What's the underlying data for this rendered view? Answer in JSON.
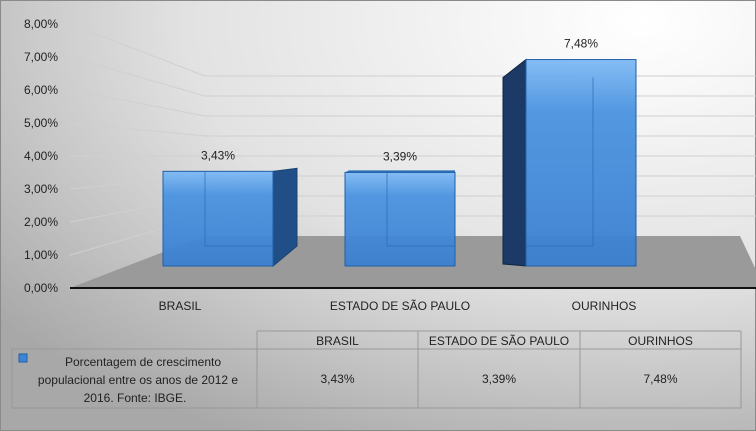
{
  "chart_data": {
    "type": "bar",
    "style": "3d-column",
    "categories": [
      "BRASIL",
      "ESTADO DE SÃO PAULO",
      "OURINHOS"
    ],
    "series": [
      {
        "name": "Porcentagem de crescimento populacional entre os anos de 2012 e 2016. Fonte: IBGE.",
        "values": [
          3.43,
          3.39,
          7.48
        ],
        "color": "#3d85d6"
      }
    ],
    "data_labels": [
      "3,43%",
      "3,39%",
      "7,48%"
    ],
    "yticks": [
      "0,00%",
      "1,00%",
      "2,00%",
      "3,00%",
      "4,00%",
      "5,00%",
      "6,00%",
      "7,00%",
      "8,00%"
    ],
    "ylim": [
      0,
      8
    ],
    "grid": true,
    "legend": "data-table",
    "table": {
      "legend_lines": [
        "Porcentagem de crescimento",
        "populacional entre os anos de 2012 e",
        "2016. Fonte: IBGE."
      ],
      "headers": [
        "BRASIL",
        "ESTADO DE SÃO PAULO",
        "OURINHOS"
      ],
      "values": [
        "3,43%",
        "3,39%",
        "7,48%"
      ]
    },
    "colors": {
      "floor": "#9a9a9a",
      "side": "#1b3a66",
      "bar": "#3d85d6",
      "bar_light": "#7fbaf5"
    }
  }
}
